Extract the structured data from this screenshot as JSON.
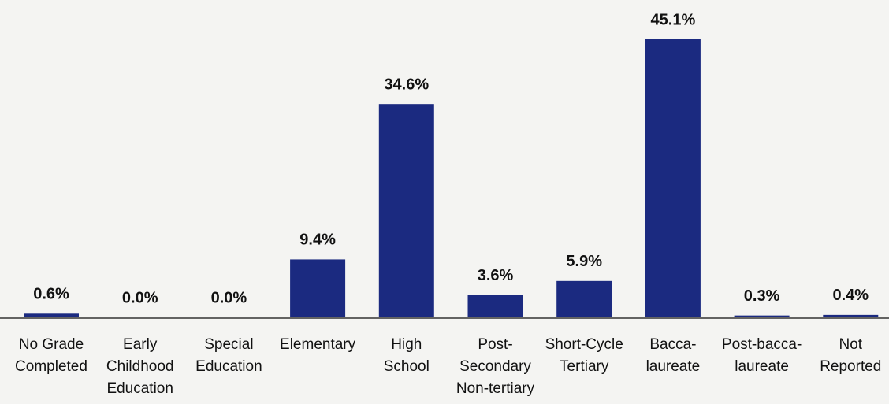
{
  "chart_data": {
    "type": "bar",
    "categories": [
      [
        "No Grade",
        "Completed"
      ],
      [
        "Early",
        "Childhood",
        "Education"
      ],
      [
        "Special",
        "Education"
      ],
      [
        "Elementary"
      ],
      [
        "High",
        "School"
      ],
      [
        "Post-",
        "Secondary",
        "Non-tertiary"
      ],
      [
        "Short-Cycle",
        "Tertiary"
      ],
      [
        "Bacca-",
        "laureate"
      ],
      [
        "Post-bacca-",
        "laureate"
      ],
      [
        "Not",
        "Reported"
      ]
    ],
    "values": [
      0.6,
      0.0,
      0.0,
      9.4,
      34.6,
      3.6,
      5.9,
      45.1,
      0.3,
      0.4
    ],
    "value_labels": [
      "0.6%",
      "0.0%",
      "0.0%",
      "9.4%",
      "34.6%",
      "3.6%",
      "5.9%",
      "45.1%",
      "0.3%",
      "0.4%"
    ],
    "color": "#1b2a80"
  }
}
